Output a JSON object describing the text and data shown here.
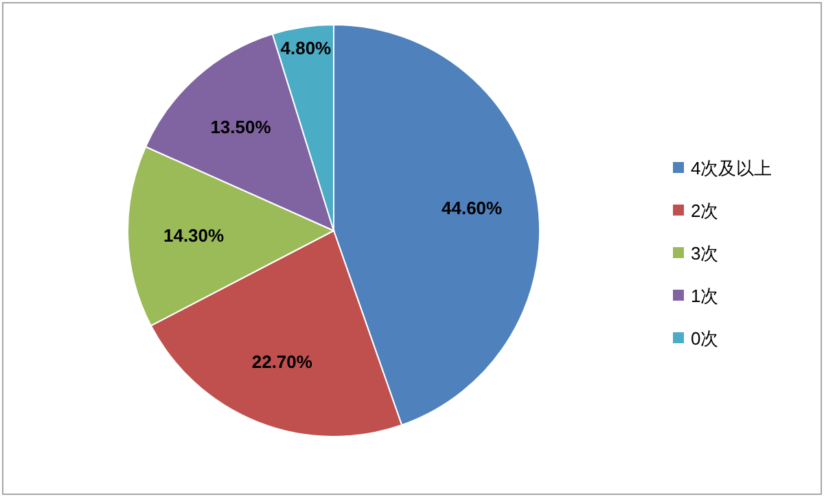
{
  "chart_data": {
    "type": "pie",
    "categories": [
      "4次及以上",
      "2次",
      "3次",
      "1次",
      "0次"
    ],
    "values": [
      44.6,
      22.7,
      14.3,
      13.5,
      4.8
    ],
    "colors": [
      "#4f81bd",
      "#c0504d",
      "#9bbb59",
      "#8064a2",
      "#4bacc6"
    ],
    "value_labels": [
      "44.60%",
      "22.70%",
      "14.30%",
      "13.50%",
      "4.80%"
    ],
    "legend": "right"
  }
}
